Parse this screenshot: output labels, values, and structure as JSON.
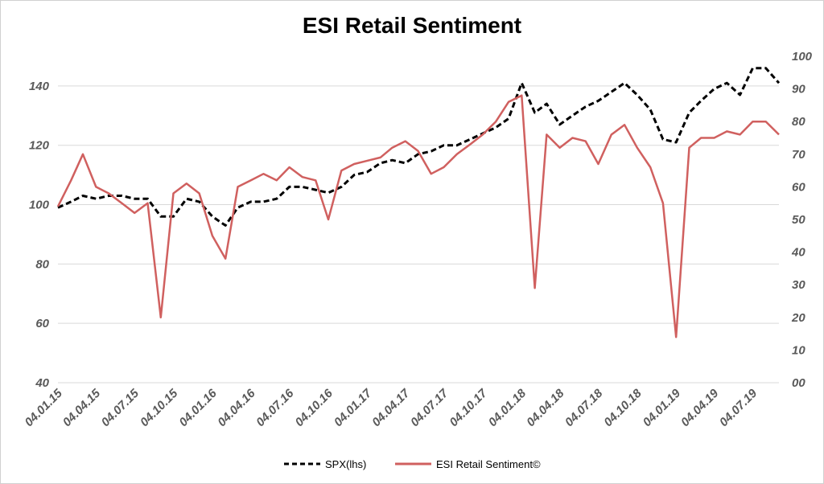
{
  "chart_data": {
    "type": "line",
    "title": "ESI Retail Sentiment",
    "x_tick_labels": [
      "04.01.15",
      "04.04.15",
      "04.07.15",
      "04.10.15",
      "04.01.16",
      "04.04.16",
      "04.07.16",
      "04.10.16",
      "04.01.17",
      "04.04.17",
      "04.07.17",
      "04.10.17",
      "04.01.18",
      "04.04.18",
      "04.07.18",
      "04.10.18",
      "04.01.19",
      "04.04.19",
      "04.07.19"
    ],
    "y_left": {
      "min": 40,
      "max": 150,
      "ticks": [
        "40",
        "60",
        "80",
        "100",
        "120",
        "140"
      ]
    },
    "y_right": {
      "min": 0,
      "max": 100,
      "ticks": [
        "00",
        "10",
        "20",
        "30",
        "40",
        "50",
        "60",
        "70",
        "80",
        "90",
        "100"
      ]
    },
    "grid": "horizontal",
    "legend_position": "bottom",
    "series": [
      {
        "name": "SPX(lhs)",
        "axis": "left",
        "color": "#000000",
        "style": "dashed",
        "points": [
          [
            "04.01.15",
            99
          ],
          [
            "04.02.15",
            101
          ],
          [
            "04.03.15",
            103
          ],
          [
            "04.04.15",
            102
          ],
          [
            "04.05.15",
            103
          ],
          [
            "04.06.15",
            103
          ],
          [
            "04.07.15",
            102
          ],
          [
            "04.08.15",
            102
          ],
          [
            "04.09.15",
            96
          ],
          [
            "04.10.15",
            96
          ],
          [
            "04.11.15",
            102
          ],
          [
            "04.12.15",
            101
          ],
          [
            "04.01.16",
            96
          ],
          [
            "04.02.16",
            93
          ],
          [
            "04.03.16",
            99
          ],
          [
            "04.04.16",
            101
          ],
          [
            "04.05.16",
            101
          ],
          [
            "04.06.16",
            102
          ],
          [
            "04.07.16",
            106
          ],
          [
            "04.08.16",
            106
          ],
          [
            "04.09.16",
            105
          ],
          [
            "04.10.16",
            104
          ],
          [
            "04.11.16",
            106
          ],
          [
            "04.12.16",
            110
          ],
          [
            "04.01.17",
            111
          ],
          [
            "04.02.17",
            114
          ],
          [
            "04.03.17",
            115
          ],
          [
            "04.04.17",
            114
          ],
          [
            "04.05.17",
            117
          ],
          [
            "04.06.17",
            118
          ],
          [
            "04.07.17",
            120
          ],
          [
            "04.08.17",
            120
          ],
          [
            "04.09.17",
            122
          ],
          [
            "04.10.17",
            124
          ],
          [
            "04.11.17",
            126
          ],
          [
            "04.12.17",
            129
          ],
          [
            "04.01.18",
            141
          ],
          [
            "04.02.18",
            131
          ],
          [
            "04.03.18",
            134
          ],
          [
            "04.04.18",
            127
          ],
          [
            "04.05.18",
            130
          ],
          [
            "04.06.18",
            133
          ],
          [
            "04.07.18",
            135
          ],
          [
            "04.08.18",
            138
          ],
          [
            "04.09.18",
            141
          ],
          [
            "04.10.18",
            137
          ],
          [
            "04.11.18",
            132
          ],
          [
            "04.12.18",
            122
          ],
          [
            "04.01.19",
            121
          ],
          [
            "04.02.19",
            131
          ],
          [
            "04.03.19",
            135
          ],
          [
            "04.04.19",
            139
          ],
          [
            "04.05.19",
            141
          ],
          [
            "04.06.19",
            137
          ],
          [
            "04.07.19",
            146
          ],
          [
            "04.08.19",
            146
          ],
          [
            "04.09.19",
            141
          ]
        ]
      },
      {
        "name": "ESI Retail Sentiment©",
        "axis": "right",
        "color": "#d0605f",
        "style": "solid",
        "points": [
          [
            "04.01.15",
            54
          ],
          [
            "04.02.15",
            62
          ],
          [
            "04.03.15",
            70
          ],
          [
            "04.04.15",
            60
          ],
          [
            "04.05.15",
            58
          ],
          [
            "04.06.15",
            55
          ],
          [
            "04.07.15",
            52
          ],
          [
            "04.08.15",
            55
          ],
          [
            "04.09.15",
            20
          ],
          [
            "04.10.15",
            58
          ],
          [
            "04.11.15",
            61
          ],
          [
            "04.12.15",
            58
          ],
          [
            "04.01.16",
            45
          ],
          [
            "04.02.16",
            38
          ],
          [
            "04.03.16",
            60
          ],
          [
            "04.04.16",
            62
          ],
          [
            "04.05.16",
            64
          ],
          [
            "04.06.16",
            62
          ],
          [
            "04.07.16",
            66
          ],
          [
            "04.08.16",
            63
          ],
          [
            "04.09.16",
            62
          ],
          [
            "04.10.16",
            50
          ],
          [
            "04.11.16",
            65
          ],
          [
            "04.12.16",
            67
          ],
          [
            "04.01.17",
            68
          ],
          [
            "04.02.17",
            69
          ],
          [
            "04.03.17",
            72
          ],
          [
            "04.04.17",
            74
          ],
          [
            "04.05.17",
            71
          ],
          [
            "04.06.17",
            64
          ],
          [
            "04.07.17",
            66
          ],
          [
            "04.08.17",
            70
          ],
          [
            "04.09.17",
            73
          ],
          [
            "04.10.17",
            76
          ],
          [
            "04.11.17",
            80
          ],
          [
            "04.12.17",
            86
          ],
          [
            "04.01.18",
            88
          ],
          [
            "04.02.18",
            29
          ],
          [
            "04.03.18",
            76
          ],
          [
            "04.04.18",
            72
          ],
          [
            "04.05.18",
            75
          ],
          [
            "04.06.18",
            74
          ],
          [
            "04.07.18",
            67
          ],
          [
            "04.08.18",
            76
          ],
          [
            "04.09.18",
            79
          ],
          [
            "04.10.18",
            72
          ],
          [
            "04.11.18",
            66
          ],
          [
            "04.12.18",
            55
          ],
          [
            "04.01.19",
            14
          ],
          [
            "04.02.19",
            72
          ],
          [
            "04.03.19",
            75
          ],
          [
            "04.04.19",
            75
          ],
          [
            "04.05.19",
            77
          ],
          [
            "04.06.19",
            76
          ],
          [
            "04.07.19",
            80
          ],
          [
            "04.08.19",
            80
          ],
          [
            "04.09.19",
            76
          ]
        ]
      }
    ]
  }
}
